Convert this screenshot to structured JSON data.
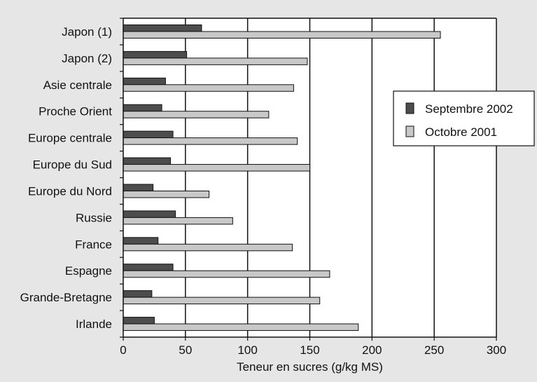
{
  "chart_data": {
    "type": "bar",
    "orientation": "horizontal",
    "categories": [
      "Japon (1)",
      "Japon (2)",
      "Asie centrale",
      "Proche Orient",
      "Europe centrale",
      "Europe du Sud",
      "Europe du Nord",
      "Russie",
      "France",
      "Espagne",
      "Grande-Bretagne",
      "Irlande"
    ],
    "series": [
      {
        "name": "Septembre 2002",
        "color": "#4d4d4d",
        "values": [
          63,
          51,
          34,
          31,
          40,
          38,
          24,
          42,
          28,
          40,
          23,
          25
        ]
      },
      {
        "name": "Octobre 2001",
        "color": "#c8c8c8",
        "values": [
          255,
          148,
          137,
          117,
          140,
          150,
          69,
          88,
          136,
          166,
          158,
          189
        ]
      }
    ],
    "title": "",
    "xlabel": "Teneur en sucres (g/kg MS)",
    "ylabel": "",
    "xlim": [
      0,
      300
    ],
    "xticks": [
      0,
      50,
      100,
      150,
      200,
      250,
      300
    ],
    "grid": true,
    "legend_position": "right"
  }
}
